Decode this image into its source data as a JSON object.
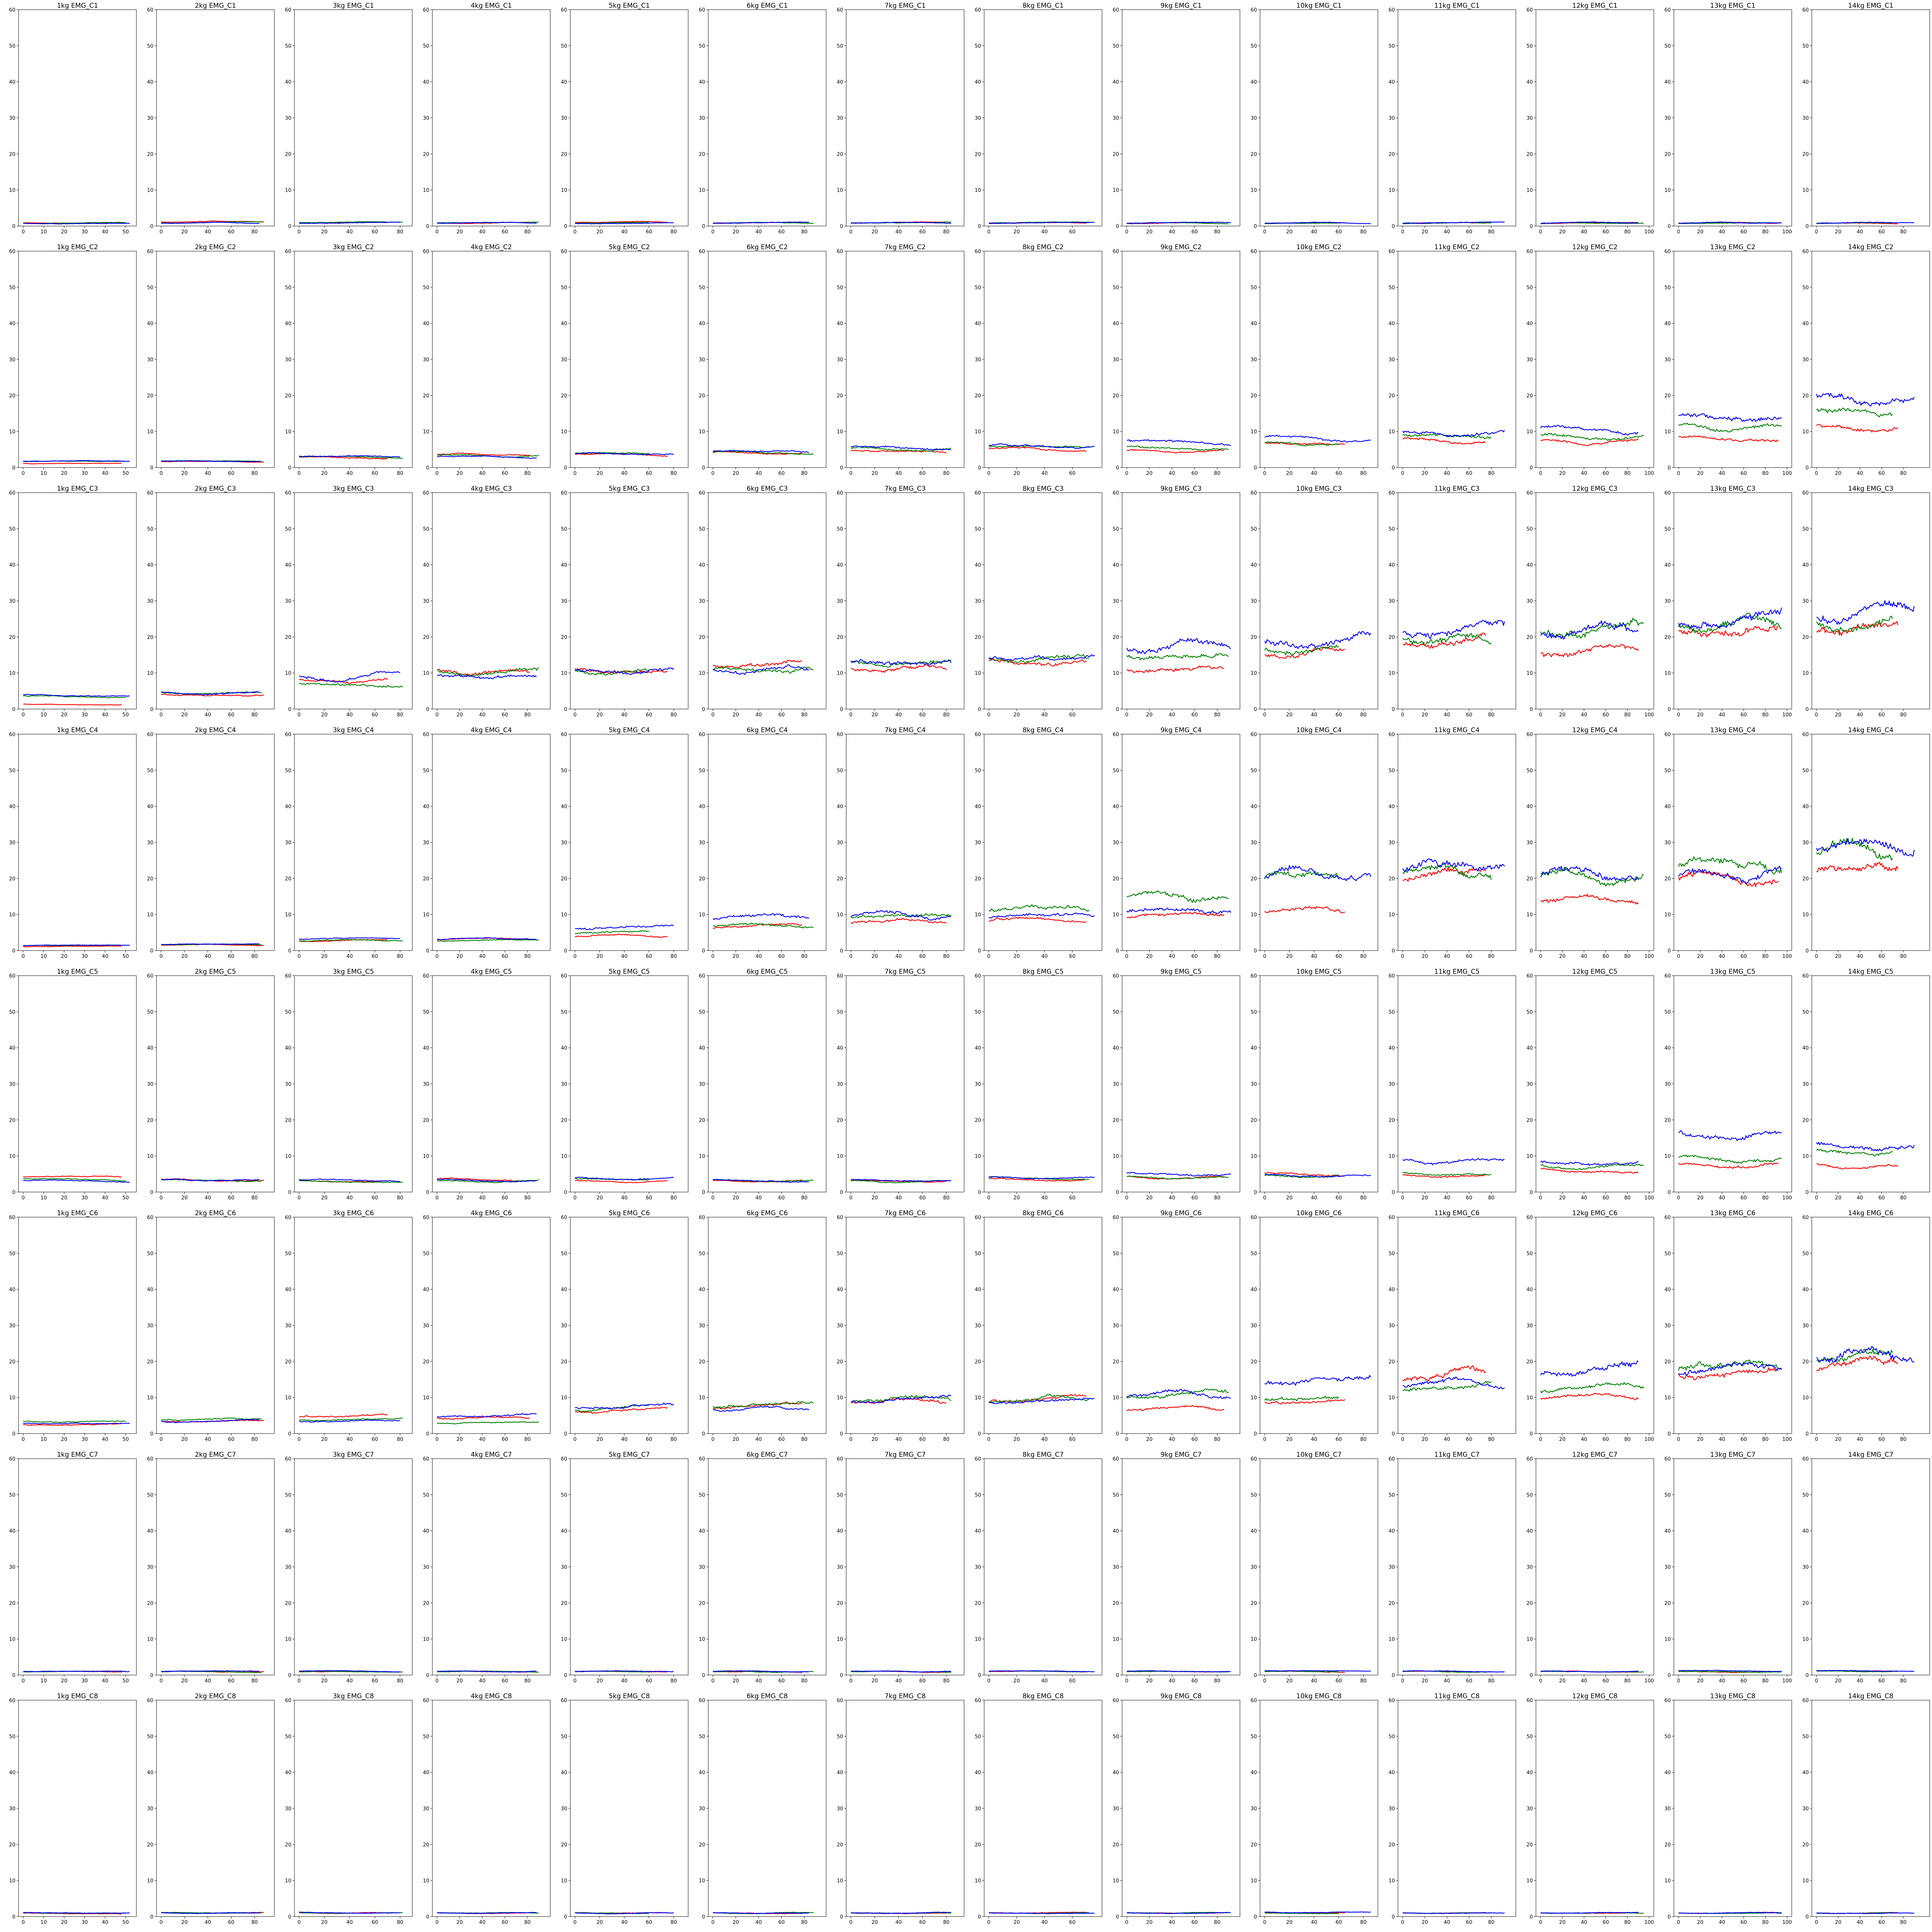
{
  "figure": {
    "rows": [
      "EMG_C1",
      "EMG_C2",
      "EMG_C3",
      "EMG_C4",
      "EMG_C5",
      "EMG_C6",
      "EMG_C7",
      "EMG_C8"
    ],
    "loads": [
      "1kg",
      "2kg",
      "3kg",
      "4kg",
      "5kg",
      "6kg",
      "7kg",
      "8kg",
      "9kg",
      "10kg",
      "11kg",
      "12kg",
      "13kg",
      "14kg"
    ],
    "series_colors": [
      "#ff0000",
      "#008000",
      "#0000ff"
    ],
    "ylim": [
      0,
      60
    ],
    "yticks": [
      0,
      10,
      20,
      30,
      40,
      50,
      60
    ],
    "xlims": [
      [
        0,
        53
      ],
      [
        0,
        93
      ],
      [
        0,
        86
      ],
      [
        0,
        96
      ],
      [
        0,
        88
      ],
      [
        0,
        95
      ],
      [
        0,
        91
      ],
      [
        0,
        78
      ],
      [
        0,
        96
      ],
      [
        0,
        88
      ],
      [
        0,
        98
      ],
      [
        0,
        100
      ],
      [
        0,
        100
      ],
      [
        0,
        100
      ]
    ],
    "xticks": [
      [
        0,
        10,
        20,
        30,
        40,
        50
      ],
      [
        0,
        20,
        40,
        60,
        80
      ],
      [
        0,
        20,
        40,
        60,
        80
      ],
      [
        0,
        20,
        40,
        60,
        80
      ],
      [
        0,
        20,
        40,
        60,
        80
      ],
      [
        0,
        20,
        40,
        60,
        80
      ],
      [
        0,
        20,
        40,
        60,
        80
      ],
      [
        0,
        20,
        40,
        60
      ],
      [
        0,
        20,
        40,
        60,
        80
      ],
      [
        0,
        20,
        40,
        60,
        80
      ],
      [
        0,
        20,
        40,
        60,
        80
      ],
      [
        0,
        20,
        40,
        60,
        80,
        100
      ],
      [
        0,
        20,
        40,
        60,
        80,
        100
      ],
      [
        0,
        20,
        40,
        60,
        80
      ]
    ],
    "lengths": [
      [
        48,
        50,
        52
      ],
      [
        88,
        86,
        84
      ],
      [
        70,
        82,
        80
      ],
      [
        82,
        90,
        88
      ],
      [
        75,
        60,
        80
      ],
      [
        78,
        88,
        84
      ],
      [
        80,
        84,
        84
      ],
      [
        70,
        72,
        76
      ],
      [
        86,
        90,
        92
      ],
      [
        65,
        60,
        86
      ],
      [
        75,
        80,
        92
      ],
      [
        90,
        95,
        90
      ],
      [
        92,
        95,
        95
      ],
      [
        75,
        70,
        90
      ]
    ]
  },
  "chart_data": {
    "type": "line",
    "title": "",
    "description_of_grid": "small multiples: 8 rows (EMG channels C1..C8) x 14 columns (load 1kg..14kg); each panel has 3 series (red, green, blue)",
    "ylim": [
      0,
      60
    ],
    "levels": [
      [
        [
          1.0,
          0.9,
          0.8
        ],
        [
          1.2,
          1.0,
          0.9
        ],
        [
          1.0,
          1.0,
          0.9
        ],
        [
          0.9,
          1.0,
          0.9
        ],
        [
          1.1,
          0.9,
          0.8
        ],
        [
          0.9,
          0.9,
          0.9
        ],
        [
          1.0,
          1.0,
          0.9
        ],
        [
          0.8,
          1.0,
          0.9
        ],
        [
          0.8,
          0.8,
          0.9
        ],
        [
          0.8,
          0.8,
          0.9
        ],
        [
          0.8,
          0.8,
          0.9
        ],
        [
          0.8,
          0.8,
          0.9
        ],
        [
          0.9,
          0.8,
          0.9
        ],
        [
          0.8,
          0.8,
          0.9
        ]
      ],
      [
        [
          1.1,
          1.6,
          1.7
        ],
        [
          1.6,
          1.8,
          1.8
        ],
        [
          2.8,
          2.9,
          3.0
        ],
        [
          3.5,
          3.3,
          2.9
        ],
        [
          3.5,
          3.8,
          3.8
        ],
        [
          4.0,
          4.2,
          4.3
        ],
        [
          4.5,
          5.0,
          5.5
        ],
        [
          5.0,
          5.5,
          6.0
        ],
        [
          4.5,
          5.5,
          7.0
        ],
        [
          6.5,
          6.5,
          8.0
        ],
        [
          7.5,
          8.5,
          9.5
        ],
        [
          7.0,
          8.5,
          10.5
        ],
        [
          8.0,
          11.0,
          13.5
        ],
        [
          11.0,
          15.0,
          19.0
        ]
      ],
      [
        [
          1.3,
          3.5,
          4.0
        ],
        [
          4.0,
          4.5,
          4.5
        ],
        [
          8.0,
          7.0,
          9.0
        ],
        [
          10.5,
          10.5,
          9.5
        ],
        [
          11.0,
          10.5,
          10.5
        ],
        [
          12.0,
          11.0,
          11.0
        ],
        [
          11.0,
          13.0,
          13.5
        ],
        [
          14.0,
          14.0,
          14.0
        ],
        [
          11.0,
          15.0,
          17.0
        ],
        [
          15.0,
          17.0,
          19.5
        ],
        [
          19.0,
          20.0,
          21.5
        ],
        [
          16.0,
          22.0,
          22.0
        ],
        [
          22.0,
          24.0,
          25.0
        ],
        [
          23.0,
          25.0,
          26.0
        ]
      ],
      [
        [
          1.2,
          1.5,
          1.5
        ],
        [
          1.6,
          1.7,
          1.8
        ],
        [
          2.8,
          2.8,
          3.3
        ],
        [
          3.2,
          2.8,
          3.3
        ],
        [
          4.0,
          5.0,
          6.5
        ],
        [
          6.5,
          7.0,
          9.0
        ],
        [
          8.0,
          9.5,
          10.0
        ],
        [
          8.5,
          11.5,
          9.5
        ],
        [
          9.5,
          15.0,
          11.0
        ],
        [
          11.0,
          21.0,
          21.0
        ],
        [
          20.0,
          22.0,
          23.0
        ],
        [
          14.0,
          21.0,
          21.0
        ],
        [
          20.0,
          24.0,
          21.0
        ],
        [
          22.0,
          27.0,
          28.0
        ]
      ],
      [
        [
          4.0,
          3.5,
          3.0
        ],
        [
          3.3,
          3.2,
          3.3
        ],
        [
          3.0,
          2.9,
          3.2
        ],
        [
          3.5,
          3.0,
          3.3
        ],
        [
          3.0,
          3.5,
          3.8
        ],
        [
          3.0,
          3.2,
          3.2
        ],
        [
          3.0,
          3.0,
          3.2
        ],
        [
          3.5,
          3.8,
          4.0
        ],
        [
          4.0,
          4.0,
          5.0
        ],
        [
          5.0,
          4.5,
          4.5
        ],
        [
          4.5,
          5.0,
          8.5
        ],
        [
          6.0,
          7.0,
          8.0
        ],
        [
          7.5,
          9.5,
          15.5
        ],
        [
          7.5,
          11.0,
          13.0
        ]
      ],
      [
        [
          2.5,
          3.5,
          3.0
        ],
        [
          3.5,
          4.0,
          3.5
        ],
        [
          5.0,
          4.0,
          3.5
        ],
        [
          4.5,
          3.0,
          5.0
        ],
        [
          6.5,
          7.0,
          7.5
        ],
        [
          7.5,
          8.0,
          7.0
        ],
        [
          9.0,
          9.5,
          9.5
        ],
        [
          9.5,
          9.5,
          9.0
        ],
        [
          7.0,
          11.0,
          11.0
        ],
        [
          9.0,
          10.0,
          15.0
        ],
        [
          16.0,
          13.0,
          14.0
        ],
        [
          10.5,
          12.5,
          18.0
        ],
        [
          17.0,
          19.0,
          18.0
        ],
        [
          19.0,
          22.0,
          22.0
        ]
      ],
      [
        [
          0.9,
          0.9,
          1.0
        ],
        [
          0.9,
          0.9,
          1.0
        ],
        [
          0.9,
          0.9,
          1.1
        ],
        [
          0.9,
          0.9,
          1.0
        ],
        [
          0.9,
          0.9,
          1.0
        ],
        [
          0.9,
          0.9,
          1.0
        ],
        [
          0.9,
          0.9,
          1.0
        ],
        [
          0.9,
          1.0,
          1.0
        ],
        [
          0.9,
          0.9,
          1.0
        ],
        [
          0.9,
          0.9,
          1.1
        ],
        [
          0.9,
          0.9,
          1.0
        ],
        [
          0.9,
          0.9,
          1.0
        ],
        [
          0.9,
          0.9,
          1.1
        ],
        [
          1.0,
          1.0,
          1.1
        ]
      ],
      [
        [
          0.9,
          1.0,
          1.0
        ],
        [
          1.0,
          1.1,
          1.0
        ],
        [
          1.0,
          1.0,
          1.1
        ],
        [
          1.0,
          1.0,
          1.0
        ],
        [
          1.0,
          1.0,
          1.0
        ],
        [
          1.0,
          1.0,
          1.0
        ],
        [
          1.0,
          1.0,
          1.0
        ],
        [
          1.0,
          1.0,
          1.0
        ],
        [
          1.0,
          1.0,
          1.0
        ],
        [
          1.0,
          1.0,
          1.2
        ],
        [
          1.0,
          1.0,
          1.0
        ],
        [
          1.0,
          1.0,
          1.0
        ],
        [
          1.0,
          1.0,
          1.0
        ],
        [
          1.0,
          1.0,
          1.0
        ]
      ]
    ]
  }
}
